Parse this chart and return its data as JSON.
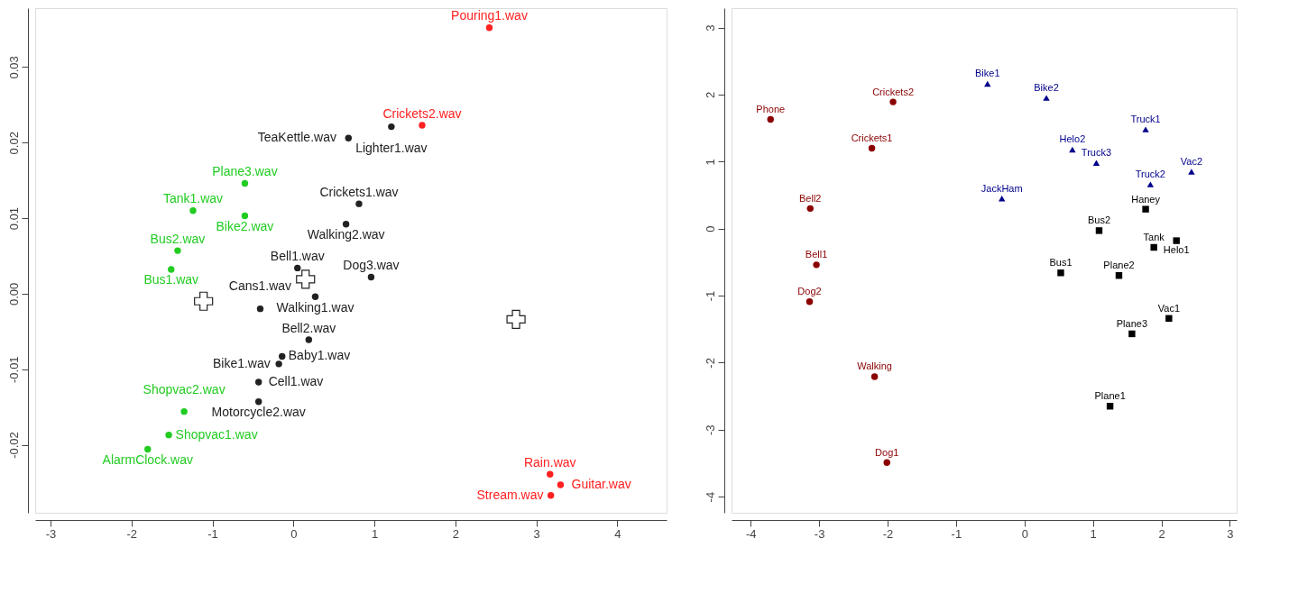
{
  "chart_data": [
    {
      "type": "scatter",
      "xlim": [
        -3.19,
        4.61
      ],
      "ylim": [
        -0.029,
        0.0378
      ],
      "grid": false,
      "xticks": [
        -3,
        -2,
        -1,
        0,
        1,
        2,
        3,
        4
      ],
      "yticks": [
        -0.02,
        -0.01,
        {
          "value": 0,
          "label": "0.00"
        },
        0.01,
        0.02,
        0.03
      ],
      "series": [
        {
          "color": "#ff2020",
          "marker": "circle",
          "x": [
            2.42,
            1.59,
            3.17,
            3.3,
            3.18
          ],
          "values": [
            0.0352,
            0.0223,
            -0.0239,
            -0.0253,
            -0.0267
          ],
          "value_labels": [
            "Pouring1.wav",
            "Crickets2.wav",
            "Rain.wav",
            "Guitar.wav",
            "Stream.wav"
          ]
        },
        {
          "color": "#222222",
          "marker": "circle",
          "x": [
            1.21,
            0.68,
            0.81,
            0.65,
            0.05,
            0.96,
            0.27,
            -0.41,
            0.19,
            -0.14,
            -0.18,
            -0.43,
            -0.43
          ],
          "values": [
            0.0221,
            0.0206,
            0.0119,
            0.0092,
            0.0034,
            0.0022,
            -0.0004,
            -0.002,
            -0.0061,
            -0.0083,
            -0.0093,
            -0.0117,
            -0.0143
          ],
          "value_labels": [
            "Lighter1.wav",
            "TeaKettle.wav",
            "Crickets1.wav",
            "Walking2.wav",
            "Bell1.wav",
            "Dog3.wav",
            "Walking1.wav",
            "Cans1.wav",
            "Bell2.wav",
            "Baby1.wav",
            "Bike1.wav",
            "Cell1.wav",
            "Motorcycle2.wav"
          ]
        },
        {
          "color": "#22cc22",
          "marker": "circle",
          "x": [
            -0.6,
            -1.24,
            -0.6,
            -1.43,
            -1.51,
            -1.35,
            -1.54,
            -1.8
          ],
          "values": [
            0.0146,
            0.011,
            0.0103,
            0.0057,
            0.0032,
            -0.0156,
            -0.0187,
            -0.0206
          ],
          "value_labels": [
            "Plane3.wav",
            "Tank1.wav",
            "Bike2.wav",
            "Bus2.wav",
            "Bus1.wav",
            "Shopvac2.wav",
            "Shopvac1.wav",
            "AlarmClock.wav"
          ]
        },
        {
          "color": "#222222",
          "marker": "cross",
          "x": [
            -1.11,
            0.15,
            2.75
          ],
          "values": [
            -0.001,
            0.0019,
            -0.0034
          ]
        }
      ]
    },
    {
      "type": "scatter",
      "xlim": [
        -4.28,
        3.1
      ],
      "ylim": [
        -4.24,
        3.29
      ],
      "grid": false,
      "xticks": [
        -4,
        -3,
        -2,
        -1,
        0,
        1,
        2,
        3
      ],
      "yticks": [
        -4,
        -3,
        -2,
        -1,
        0,
        1,
        2,
        3
      ],
      "series": [
        {
          "color": "#8b0000",
          "marker": "circle",
          "x": [
            -3.71,
            -1.92,
            -2.23,
            -3.13,
            -3.04,
            -3.14,
            -2.19,
            -2.01
          ],
          "values": [
            1.63,
            1.89,
            1.2,
            0.3,
            -0.54,
            -1.09,
            -2.21,
            -3.49
          ],
          "value_labels": [
            "Phone",
            "Crickets2",
            "Crickets1",
            "Bell2",
            "Bell1",
            "Dog2",
            "Walking",
            "Dog1"
          ]
        },
        {
          "color": "#00008b",
          "marker": "triangle",
          "x": [
            -0.54,
            0.32,
            1.77,
            0.7,
            1.05,
            1.84,
            2.44,
            -0.33
          ],
          "values": [
            2.16,
            1.95,
            1.48,
            1.18,
            0.98,
            0.66,
            0.85,
            0.45
          ],
          "value_labels": [
            "Bike1",
            "Bike2",
            "Truck1",
            "Helo2",
            "Truck3",
            "Truck2",
            "Vac2",
            "JackHam"
          ]
        },
        {
          "color": "#000000",
          "marker": "square",
          "x": [
            1.77,
            1.09,
            1.89,
            2.22,
            0.53,
            1.38,
            2.11,
            1.57,
            1.25
          ],
          "values": [
            0.29,
            -0.03,
            -0.28,
            -0.18,
            -0.66,
            -0.7,
            -1.34,
            -1.57,
            -2.65
          ],
          "value_labels": [
            "Haney",
            "Bus2",
            "Tank",
            "Helo1",
            "Bus1",
            "Plane2",
            "Vac1",
            "Plane3",
            "Plane1"
          ]
        }
      ]
    }
  ]
}
